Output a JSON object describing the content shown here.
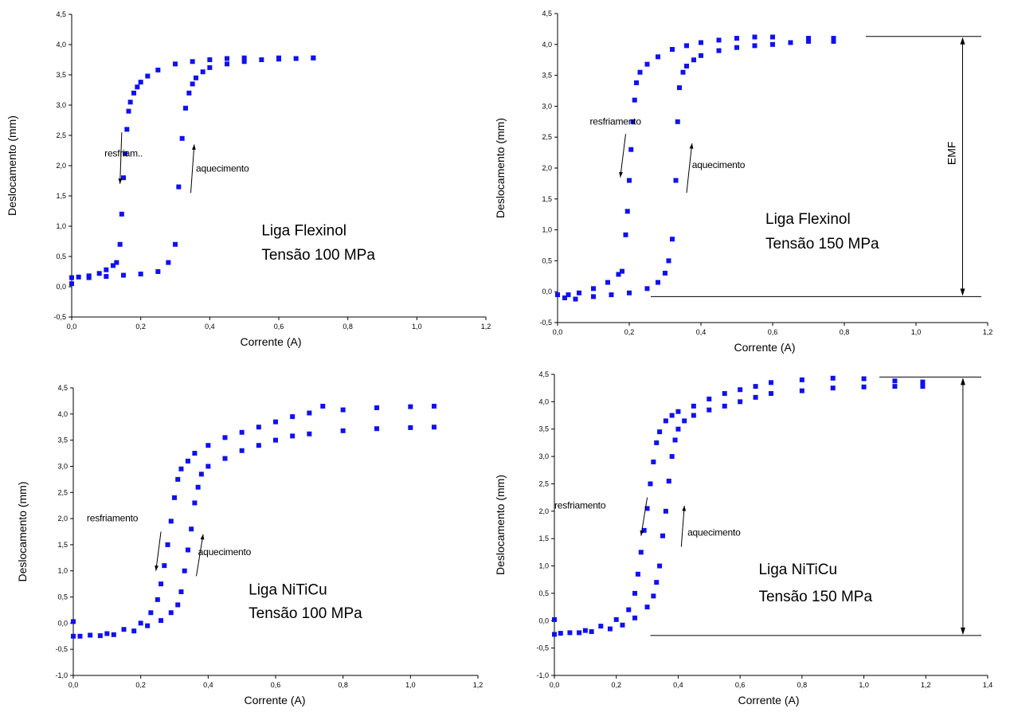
{
  "chart_data": [
    {
      "type": "scatter",
      "xlabel": "Corrente (A)",
      "ylabel": "Deslocamento (mm)",
      "xlim": [
        0,
        1.2
      ],
      "ylim": [
        -0.5,
        4.5
      ],
      "xticks": [
        0.0,
        0.2,
        0.4,
        0.6,
        0.8,
        1.0,
        1.2
      ],
      "yticks": [
        -0.5,
        0.0,
        0.5,
        1.0,
        1.5,
        2.0,
        2.5,
        3.0,
        3.5,
        4.0,
        4.5
      ],
      "xtick_labels": [
        "0,0",
        "0,2",
        "0,4",
        "0,6",
        "0,8",
        "1,0",
        "1,2"
      ],
      "ytick_labels": [
        "-0,5",
        "0,0",
        "0,5",
        "1,0",
        "1,5",
        "2,0",
        "2,5",
        "3,0",
        "3,5",
        "4,0",
        "4,5"
      ],
      "annotations": [
        {
          "text": "resfriam..",
          "x": 0.095,
          "y": 2.15
        },
        {
          "text": "aquecimento",
          "x": 0.36,
          "y": 1.9
        },
        {
          "text": "Liga Flexinol",
          "x": 0.55,
          "y": 0.85
        },
        {
          "text": "Tensão 100 MPa",
          "x": 0.55,
          "y": 0.45
        }
      ],
      "series": [
        {
          "color": "#1010f0",
          "x": [
            0.0,
            0.02,
            0.05,
            0.08,
            0.1,
            0.12,
            0.13,
            0.14,
            0.145,
            0.15,
            0.155,
            0.16,
            0.165,
            0.17,
            0.18,
            0.19,
            0.2,
            0.22,
            0.25,
            0.3,
            0.35,
            0.4,
            0.45,
            0.5,
            0.6,
            0.7
          ],
          "y": [
            0.15,
            0.16,
            0.18,
            0.22,
            0.28,
            0.35,
            0.4,
            0.7,
            1.2,
            1.8,
            2.2,
            2.6,
            2.9,
            3.05,
            3.2,
            3.3,
            3.38,
            3.48,
            3.58,
            3.68,
            3.72,
            3.75,
            3.77,
            3.78,
            3.78,
            3.78
          ]
        },
        {
          "color": "#1010f0",
          "x": [
            0.0,
            0.05,
            0.1,
            0.15,
            0.2,
            0.25,
            0.28,
            0.3,
            0.31,
            0.32,
            0.33,
            0.34,
            0.35,
            0.36,
            0.38,
            0.4,
            0.45,
            0.5,
            0.55,
            0.6,
            0.65,
            0.7
          ],
          "y": [
            0.05,
            0.15,
            0.17,
            0.19,
            0.21,
            0.25,
            0.4,
            0.7,
            1.65,
            2.45,
            2.95,
            3.2,
            3.35,
            3.45,
            3.55,
            3.62,
            3.68,
            3.72,
            3.75,
            3.76,
            3.77,
            3.78
          ]
        }
      ]
    },
    {
      "type": "scatter",
      "xlabel": "Corrente (A)",
      "ylabel": "Deslocamento (mm)",
      "xlim": [
        0,
        1.2
      ],
      "ylim": [
        -0.5,
        4.5
      ],
      "xticks": [
        0.0,
        0.2,
        0.4,
        0.6,
        0.8,
        1.0,
        1.2
      ],
      "yticks": [
        -0.5,
        0.0,
        0.5,
        1.0,
        1.5,
        2.0,
        2.5,
        3.0,
        3.5,
        4.0,
        4.5
      ],
      "xtick_labels": [
        "0,0",
        "0,2",
        "0,4",
        "0,6",
        "0,8",
        "1,0",
        "1,2"
      ],
      "ytick_labels": [
        "-0,5",
        "0,0",
        "0,5",
        "1,0",
        "1,5",
        "2,0",
        "2,5",
        "3,0",
        "3,5",
        "4,0",
        "4,5"
      ],
      "annotations": [
        {
          "text": "resfriamento",
          "x": 0.09,
          "y": 2.7
        },
        {
          "text": "aquecimento",
          "x": 0.375,
          "y": 2.0
        },
        {
          "text": "Liga Flexinol",
          "x": 0.58,
          "y": 1.1
        },
        {
          "text": "Tensão 150 MPa",
          "x": 0.58,
          "y": 0.7
        },
        {
          "text": "EMF",
          "x": 1.11,
          "y": 2.05
        }
      ],
      "emf_marker": {
        "y_top": 4.13,
        "y_bottom": -0.08,
        "x": 1.13
      },
      "series": [
        {
          "color": "#1010f0",
          "x": [
            0.0,
            0.03,
            0.06,
            0.1,
            0.14,
            0.17,
            0.18,
            0.19,
            0.195,
            0.2,
            0.205,
            0.21,
            0.215,
            0.22,
            0.23,
            0.25,
            0.28,
            0.32,
            0.36,
            0.4,
            0.45,
            0.5,
            0.55,
            0.6,
            0.7,
            0.77
          ],
          "y": [
            -0.05,
            -0.05,
            -0.02,
            0.05,
            0.15,
            0.28,
            0.33,
            0.92,
            1.3,
            1.8,
            2.3,
            2.75,
            3.1,
            3.38,
            3.55,
            3.68,
            3.8,
            3.92,
            3.98,
            4.03,
            4.07,
            4.1,
            4.12,
            4.12,
            4.1,
            4.1
          ]
        },
        {
          "color": "#1010f0",
          "x": [
            0.02,
            0.05,
            0.1,
            0.15,
            0.2,
            0.25,
            0.28,
            0.3,
            0.31,
            0.32,
            0.33,
            0.335,
            0.34,
            0.35,
            0.36,
            0.38,
            0.4,
            0.45,
            0.5,
            0.55,
            0.6,
            0.65,
            0.7,
            0.77
          ],
          "y": [
            -0.1,
            -0.12,
            -0.08,
            -0.05,
            -0.02,
            0.05,
            0.15,
            0.3,
            0.5,
            0.85,
            1.8,
            2.75,
            3.3,
            3.55,
            3.65,
            3.75,
            3.82,
            3.9,
            3.95,
            3.98,
            4.0,
            4.03,
            4.05,
            4.05
          ]
        }
      ]
    },
    {
      "type": "scatter",
      "xlabel": "Corrente (A)",
      "ylabel": "Deslocamento (mm)",
      "xlim": [
        0,
        1.2
      ],
      "ylim": [
        -1.0,
        4.5
      ],
      "xticks": [
        0.0,
        0.2,
        0.4,
        0.6,
        0.8,
        1.0,
        1.2
      ],
      "yticks": [
        -1.0,
        -0.5,
        0.0,
        0.5,
        1.0,
        1.5,
        2.0,
        2.5,
        3.0,
        3.5,
        4.0,
        4.5
      ],
      "xtick_labels": [
        "0,0",
        "0,2",
        "0,4",
        "0,6",
        "0,8",
        "1,0",
        "1,2"
      ],
      "ytick_labels": [
        "-1,0",
        "-0,5",
        "0,0",
        "0,5",
        "1,0",
        "1,5",
        "2,0",
        "2,5",
        "3,0",
        "3,5",
        "4,0",
        "4,5"
      ],
      "annotations": [
        {
          "text": "resfriamento",
          "x": 0.04,
          "y": 1.95
        },
        {
          "text": "aquecimento",
          "x": 0.37,
          "y": 1.3
        },
        {
          "text": "Liga NiTiCu",
          "x": 0.52,
          "y": 0.55
        },
        {
          "text": "Tensão 100 MPa",
          "x": 0.52,
          "y": 0.1
        }
      ],
      "series": [
        {
          "color": "#1010f0",
          "x": [
            0.0,
            0.0,
            0.05,
            0.1,
            0.15,
            0.2,
            0.23,
            0.25,
            0.26,
            0.27,
            0.28,
            0.29,
            0.3,
            0.31,
            0.32,
            0.34,
            0.36,
            0.4,
            0.45,
            0.5,
            0.55,
            0.6,
            0.65,
            0.7,
            0.74,
            0.8,
            0.9,
            1.0,
            1.07
          ],
          "y": [
            0.03,
            -0.25,
            -0.23,
            -0.2,
            -0.12,
            0.0,
            0.2,
            0.45,
            0.75,
            1.1,
            1.5,
            1.95,
            2.4,
            2.75,
            2.95,
            3.1,
            3.25,
            3.4,
            3.55,
            3.65,
            3.75,
            3.85,
            3.95,
            4.02,
            4.15,
            4.08,
            4.12,
            4.14,
            4.15
          ]
        },
        {
          "color": "#1010f0",
          "x": [
            0.02,
            0.08,
            0.12,
            0.18,
            0.22,
            0.26,
            0.29,
            0.31,
            0.32,
            0.33,
            0.34,
            0.35,
            0.36,
            0.37,
            0.38,
            0.4,
            0.45,
            0.5,
            0.55,
            0.6,
            0.65,
            0.7,
            0.8,
            0.9,
            1.0,
            1.07
          ],
          "y": [
            -0.25,
            -0.24,
            -0.22,
            -0.15,
            -0.05,
            0.05,
            0.2,
            0.35,
            0.6,
            1.0,
            1.4,
            1.8,
            2.3,
            2.6,
            2.85,
            3.0,
            3.15,
            3.3,
            3.4,
            3.5,
            3.58,
            3.62,
            3.68,
            3.72,
            3.74,
            3.75
          ]
        }
      ]
    },
    {
      "type": "scatter",
      "xlabel": "Corrente (A)",
      "ylabel": "Deslocamento (mm)",
      "xlim": [
        0,
        1.4
      ],
      "ylim": [
        -1.0,
        4.5
      ],
      "xticks": [
        0.0,
        0.2,
        0.4,
        0.6,
        0.8,
        1.0,
        1.2,
        1.4
      ],
      "yticks": [
        -1.0,
        -0.5,
        0.0,
        0.5,
        1.0,
        1.5,
        2.0,
        2.5,
        3.0,
        3.5,
        4.0,
        4.5
      ],
      "xtick_labels": [
        "0,0",
        "0,2",
        "0,4",
        "0,6",
        "0,8",
        "1,0",
        "1,2",
        "1,4"
      ],
      "ytick_labels": [
        "-1,0",
        "-0,5",
        "0,0",
        "0,5",
        "1,0",
        "1,5",
        "2,0",
        "2,5",
        "3,0",
        "3,5",
        "4,0",
        "4,5"
      ],
      "annotations": [
        {
          "text": "resfriamento",
          "x": 0.0,
          "y": 2.05
        },
        {
          "text": "aquecimento",
          "x": 0.43,
          "y": 1.55
        },
        {
          "text": "Liga NiTiCu",
          "x": 0.66,
          "y": 0.85
        },
        {
          "text": "Tensão 150 MPa",
          "x": 0.66,
          "y": 0.35
        }
      ],
      "emf_marker": {
        "y_top": 4.45,
        "y_bottom": -0.27,
        "x": 1.32
      },
      "series": [
        {
          "color": "#1010f0",
          "x": [
            0.0,
            0.0,
            0.05,
            0.1,
            0.15,
            0.2,
            0.24,
            0.26,
            0.27,
            0.28,
            0.29,
            0.3,
            0.31,
            0.32,
            0.33,
            0.34,
            0.36,
            0.38,
            0.4,
            0.45,
            0.5,
            0.55,
            0.6,
            0.65,
            0.7,
            0.8,
            0.9,
            1.0,
            1.1,
            1.19
          ],
          "y": [
            0.02,
            -0.25,
            -0.22,
            -0.18,
            -0.1,
            0.02,
            0.2,
            0.5,
            0.85,
            1.25,
            1.65,
            2.05,
            2.5,
            2.9,
            3.25,
            3.45,
            3.65,
            3.75,
            3.82,
            3.92,
            4.05,
            4.15,
            4.22,
            4.28,
            4.35,
            4.4,
            4.43,
            4.42,
            4.38,
            4.36
          ]
        },
        {
          "color": "#1010f0",
          "x": [
            0.02,
            0.08,
            0.12,
            0.18,
            0.22,
            0.26,
            0.3,
            0.32,
            0.33,
            0.34,
            0.35,
            0.36,
            0.37,
            0.38,
            0.39,
            0.4,
            0.42,
            0.45,
            0.5,
            0.55,
            0.6,
            0.65,
            0.7,
            0.8,
            0.9,
            1.0,
            1.1,
            1.19
          ],
          "y": [
            -0.23,
            -0.22,
            -0.2,
            -0.15,
            -0.08,
            0.05,
            0.25,
            0.45,
            0.7,
            1.0,
            1.55,
            2.0,
            2.55,
            3.0,
            3.3,
            3.5,
            3.65,
            3.75,
            3.85,
            3.92,
            4.0,
            4.08,
            4.15,
            4.2,
            4.25,
            4.27,
            4.28,
            4.28
          ]
        }
      ]
    }
  ]
}
